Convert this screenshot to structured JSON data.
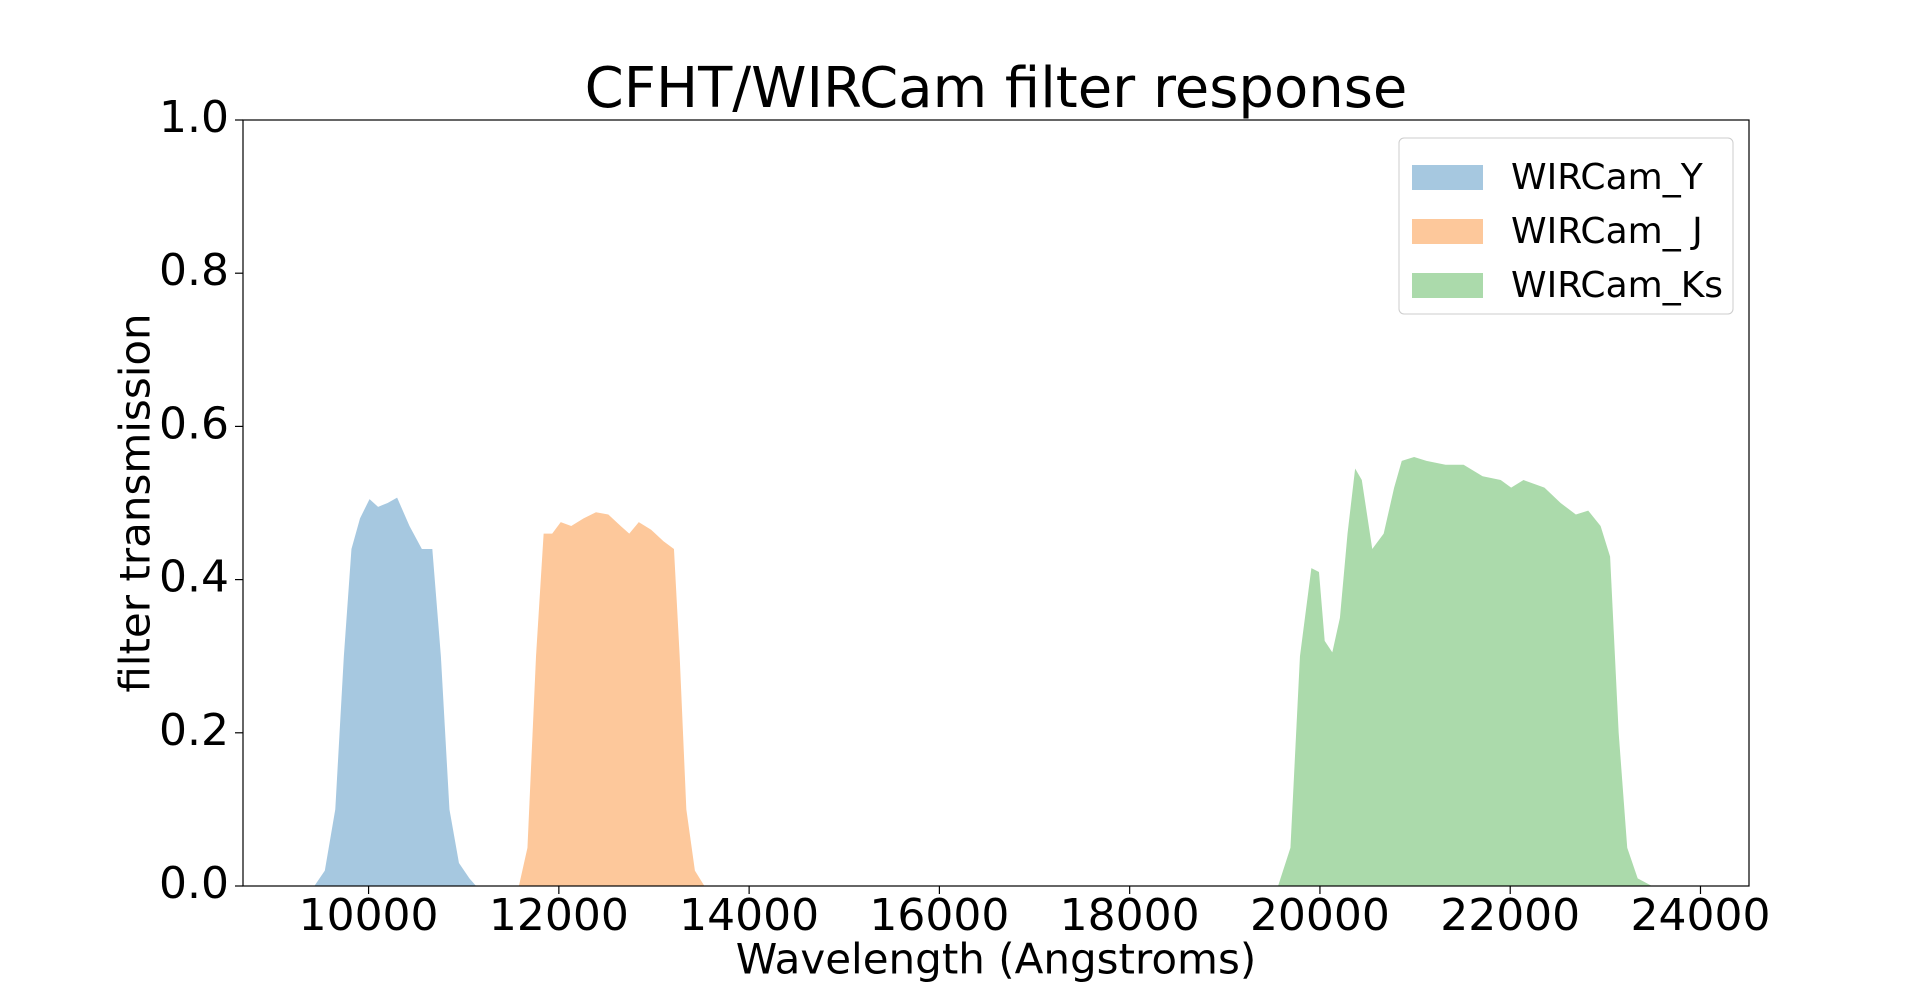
{
  "chart_data": {
    "type": "area",
    "title": "CFHT/WIRCam filter response",
    "x_label": "Wavelength (Angstroms)",
    "y_label": "filter transmission",
    "xlim": [
      8680,
      24510
    ],
    "ylim": [
      0,
      1
    ],
    "xticks": [
      10000,
      12000,
      14000,
      16000,
      18000,
      20000,
      22000,
      24000
    ],
    "yticks": [
      {
        "value": 0,
        "label": "0.0"
      },
      0.2,
      0.4,
      0.6,
      0.8,
      {
        "value": 1,
        "label": "1.0"
      }
    ],
    "legend": "upper right",
    "series": [
      {
        "name": "WIRCam_Y",
        "color": "#a6c8e0",
        "x": [
          9430,
          9540,
          9650,
          9740,
          9820,
          9910,
          10010,
          10100,
          10200,
          10300,
          10430,
          10560,
          10670,
          10760,
          10850,
          10950,
          11060,
          11130
        ],
        "values": [
          0,
          0.02,
          0.1,
          0.3,
          0.44,
          0.48,
          0.505,
          0.495,
          0.5,
          0.507,
          0.47,
          0.44,
          0.44,
          0.3,
          0.1,
          0.03,
          0.01,
          0
        ]
      },
      {
        "name": "WIRCam_ J",
        "color": "#fdc89b",
        "x": [
          11580,
          11670,
          11760,
          11840,
          11930,
          12020,
          12130,
          12260,
          12390,
          12520,
          12650,
          12740,
          12840,
          12970,
          13100,
          13210,
          13270,
          13340,
          13430,
          13530
        ],
        "values": [
          0,
          0.05,
          0.3,
          0.46,
          0.46,
          0.475,
          0.47,
          0.48,
          0.488,
          0.485,
          0.47,
          0.46,
          0.475,
          0.465,
          0.45,
          0.44,
          0.3,
          0.1,
          0.02,
          0
        ]
      },
      {
        "name": "WIRCam_Ks",
        "color": "#abdaab",
        "x": [
          19560,
          19690,
          19790,
          19910,
          19990,
          20050,
          20130,
          20210,
          20290,
          20370,
          20440,
          20550,
          20670,
          20780,
          20860,
          20990,
          21120,
          21320,
          21510,
          21710,
          21900,
          22010,
          22140,
          22360,
          22530,
          22690,
          22820,
          22950,
          23050,
          23140,
          23230,
          23340,
          23490
        ],
        "values": [
          0,
          0.05,
          0.3,
          0.415,
          0.41,
          0.32,
          0.305,
          0.35,
          0.46,
          0.545,
          0.53,
          0.44,
          0.46,
          0.52,
          0.555,
          0.56,
          0.555,
          0.55,
          0.55,
          0.535,
          0.53,
          0.52,
          0.53,
          0.52,
          0.5,
          0.485,
          0.49,
          0.47,
          0.43,
          0.2,
          0.05,
          0.01,
          0
        ]
      }
    ]
  }
}
